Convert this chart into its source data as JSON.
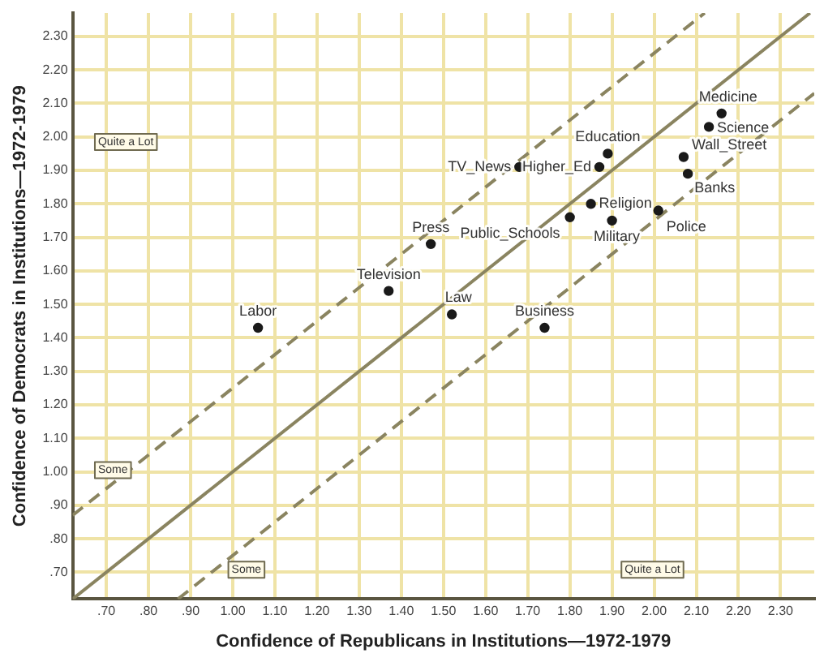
{
  "chart_data": {
    "type": "scatter",
    "xlabel": "Confidence of Republicans in Institutions—1972-1979",
    "ylabel": "Confidence of Democrats in Institutions—1972-1979",
    "xlim": [
      0.62,
      2.38
    ],
    "ylim": [
      0.62,
      2.37
    ],
    "xticks": [
      {
        "value": 0.7,
        "label": ".70"
      },
      {
        "value": 0.8,
        "label": ".80"
      },
      {
        "value": 0.9,
        "label": ".90"
      },
      {
        "value": 1.0,
        "label": "1.00"
      },
      {
        "value": 1.1,
        "label": "1.10"
      },
      {
        "value": 1.2,
        "label": "1.20"
      },
      {
        "value": 1.3,
        "label": "1.30"
      },
      {
        "value": 1.4,
        "label": "1.40"
      },
      {
        "value": 1.5,
        "label": "1.50"
      },
      {
        "value": 1.6,
        "label": "1.60"
      },
      {
        "value": 1.7,
        "label": "1.70"
      },
      {
        "value": 1.8,
        "label": "1.80"
      },
      {
        "value": 1.9,
        "label": "1.90"
      },
      {
        "value": 2.0,
        "label": "2.00"
      },
      {
        "value": 2.1,
        "label": "2.10"
      },
      {
        "value": 2.2,
        "label": "2.20"
      },
      {
        "value": 2.3,
        "label": "2.30"
      }
    ],
    "yticks": [
      {
        "value": 0.7,
        "label": ".70"
      },
      {
        "value": 0.8,
        "label": ".80"
      },
      {
        "value": 0.9,
        "label": ".90"
      },
      {
        "value": 1.0,
        "label": "1.00"
      },
      {
        "value": 1.1,
        "label": "1.10"
      },
      {
        "value": 1.2,
        "label": "1.20"
      },
      {
        "value": 1.3,
        "label": "1.30"
      },
      {
        "value": 1.4,
        "label": "1.40"
      },
      {
        "value": 1.5,
        "label": "1.50"
      },
      {
        "value": 1.6,
        "label": "1.60"
      },
      {
        "value": 1.7,
        "label": "1.70"
      },
      {
        "value": 1.8,
        "label": "1.80"
      },
      {
        "value": 1.9,
        "label": "1.90"
      },
      {
        "value": 2.0,
        "label": "2.00"
      },
      {
        "value": 2.1,
        "label": "2.10"
      },
      {
        "value": 2.2,
        "label": "2.20"
      },
      {
        "value": 2.3,
        "label": "2.30"
      }
    ],
    "grid": true,
    "legend": false,
    "marker": "circle",
    "series": [
      {
        "type": "scatter",
        "color": "#1a1a1a",
        "x": [
          1.06,
          1.37,
          1.47,
          1.52,
          1.74,
          1.68,
          1.87,
          1.89,
          1.85,
          1.8,
          1.9,
          2.01,
          2.07,
          2.08,
          2.13,
          2.16
        ],
        "values": [
          1.43,
          1.54,
          1.68,
          1.47,
          1.43,
          1.91,
          1.91,
          1.95,
          1.8,
          1.76,
          1.75,
          1.78,
          1.94,
          1.89,
          2.03,
          2.07
        ]
      },
      {
        "type": "line",
        "color": "#8a8460",
        "line_style": "solid",
        "marker": "none",
        "x": [
          0.62,
          2.37
        ],
        "values": [
          0.62,
          2.37
        ]
      },
      {
        "type": "line",
        "color": "#8a8460",
        "line_style": "dashed",
        "marker": "none",
        "x": [
          0.62,
          2.12
        ],
        "values": [
          0.87,
          2.37
        ]
      },
      {
        "type": "line",
        "color": "#8a8460",
        "line_style": "dashed",
        "marker": "none",
        "x": [
          0.87,
          2.38
        ],
        "values": [
          0.62,
          2.13
        ]
      }
    ],
    "annotations": [
      {
        "text": "Labor",
        "x": 1.06,
        "y": 1.43
      },
      {
        "text": "Television",
        "x": 1.37,
        "y": 1.54
      },
      {
        "text": "Press",
        "x": 1.47,
        "y": 1.68
      },
      {
        "text": "Law",
        "x": 1.52,
        "y": 1.47
      },
      {
        "text": "Business",
        "x": 1.74,
        "y": 1.43
      },
      {
        "text": "TV_News",
        "x": 1.68,
        "y": 1.91
      },
      {
        "text": "Higher_Ed",
        "x": 1.87,
        "y": 1.91
      },
      {
        "text": "Education",
        "x": 1.89,
        "y": 1.95
      },
      {
        "text": "Religion",
        "x": 1.85,
        "y": 1.8
      },
      {
        "text": "Public_Schools",
        "x": 1.8,
        "y": 1.76
      },
      {
        "text": "Military",
        "x": 1.9,
        "y": 1.75
      },
      {
        "text": "Police",
        "x": 2.01,
        "y": 1.78
      },
      {
        "text": "Wall_Street",
        "x": 2.07,
        "y": 1.94
      },
      {
        "text": "Banks",
        "x": 2.08,
        "y": 1.89
      },
      {
        "text": "Science",
        "x": 2.13,
        "y": 2.03
      },
      {
        "text": "Medicine",
        "x": 2.16,
        "y": 2.07
      },
      "Quite a Lot",
      "Some",
      "Some",
      "Quite a Lot"
    ]
  }
}
